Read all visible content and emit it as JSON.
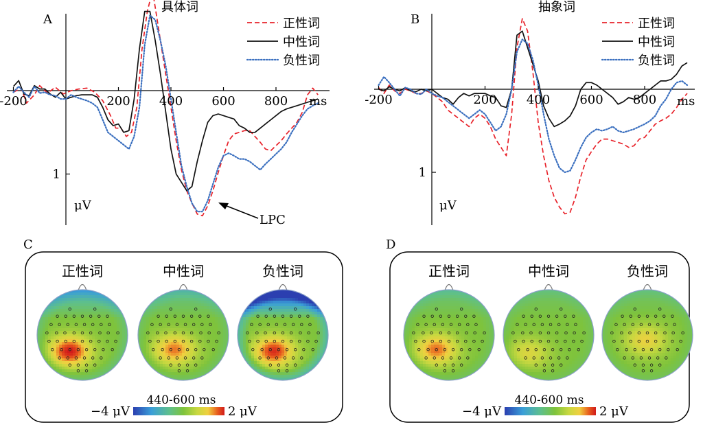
{
  "colors": {
    "positive": "#e8222a",
    "neutral": "#111111",
    "negative": "#3a6fbf",
    "cmap_low": "#2b3fb0",
    "cmap_mid": "#7ec33c",
    "cmap_high": "#d11a1a"
  },
  "panels": {
    "A": {
      "letter": "A"
    },
    "B": {
      "letter": "B"
    },
    "C": {
      "letter": "C"
    },
    "D": {
      "letter": "D"
    }
  },
  "annotations": {
    "lpc": "LPC"
  },
  "chart_data": [
    {
      "panel": "A",
      "type": "line",
      "title": "具体词",
      "x_unit": "ms",
      "y_unit": "μV",
      "xlim": [
        -220,
        960
      ],
      "ylim": [
        -1.05,
        1.6
      ],
      "y_inverted": true,
      "xticks": [
        -200,
        200,
        400,
        600,
        800
      ],
      "xtick_labels": [
        "-200",
        "200",
        "400",
        "600",
        "800"
      ],
      "yticks": [
        1
      ],
      "ytick_labels": [
        "1"
      ],
      "legend_position": "top-right",
      "series": [
        {
          "name": "正性词",
          "style": "dashed",
          "color": "#e8222a",
          "x": [
            -200,
            -170,
            -150,
            -120,
            -100,
            -70,
            -40,
            -10,
            20,
            50,
            80,
            110,
            140,
            170,
            190,
            210,
            230,
            250,
            270,
            290,
            310,
            330,
            345,
            360,
            380,
            400,
            420,
            440,
            460,
            480,
            500,
            520,
            540,
            560,
            580,
            600,
            620,
            640,
            660,
            680,
            700,
            720,
            740,
            760,
            780,
            800,
            820,
            840,
            860,
            880,
            900,
            920,
            940,
            960
          ],
          "y": [
            0.02,
            -0.03,
            0.15,
            0.05,
            -0.06,
            0.03,
            -0.04,
            0.04,
            0,
            -0.02,
            -0.03,
            0.02,
            0.12,
            0.3,
            0.45,
            0.45,
            0.55,
            0.5,
            0.2,
            -0.5,
            -0.95,
            -1.2,
            -0.9,
            -0.6,
            -0.2,
            0.2,
            0.6,
            0.95,
            1.2,
            1.35,
            1.48,
            1.5,
            1.38,
            1.2,
            0.98,
            0.78,
            0.6,
            0.52,
            0.5,
            0.48,
            0.48,
            0.55,
            0.62,
            0.7,
            0.72,
            0.66,
            0.6,
            0.52,
            0.45,
            0.38,
            0.26,
            0.05,
            -0.03,
            0.05
          ]
        },
        {
          "name": "中性词",
          "style": "solid",
          "color": "#111111",
          "x": [
            -200,
            -180,
            -160,
            -140,
            -120,
            -100,
            -80,
            -60,
            -40,
            -20,
            0,
            20,
            40,
            60,
            80,
            100,
            120,
            140,
            160,
            180,
            200,
            220,
            240,
            260,
            280,
            300,
            320,
            340,
            360,
            380,
            400,
            420,
            440,
            460,
            480,
            500,
            520,
            540,
            560,
            580,
            600,
            620,
            640,
            660,
            680,
            700,
            720,
            740,
            760,
            780,
            800,
            820,
            840,
            860,
            880,
            900,
            920,
            940,
            960
          ],
          "y": [
            -0.05,
            -0.12,
            0.04,
            0.06,
            -0.06,
            -0.02,
            -0.02,
            0.04,
            0.08,
            0.02,
            0.1,
            0.08,
            0.06,
            0.05,
            0.05,
            0.05,
            0.08,
            0.2,
            0.35,
            0.42,
            0.4,
            0.5,
            0.48,
            0.1,
            -0.5,
            -0.95,
            -0.95,
            -0.6,
            -0.2,
            0.25,
            0.7,
            1.0,
            1.1,
            1.2,
            1.15,
            0.85,
            0.6,
            0.38,
            0.3,
            0.28,
            0.3,
            0.32,
            0.34,
            0.42,
            0.45,
            0.5,
            0.5,
            0.45,
            0.4,
            0.35,
            0.3,
            0.25,
            0.22,
            0.2,
            0.18,
            0.16,
            0.14,
            0.12,
            0.1
          ]
        },
        {
          "name": "负性词",
          "style": "dotted",
          "color": "#3a6fbf",
          "x": [
            -200,
            -180,
            -160,
            -140,
            -120,
            -100,
            -80,
            -60,
            -40,
            -20,
            0,
            20,
            40,
            60,
            80,
            100,
            120,
            140,
            160,
            180,
            200,
            220,
            240,
            260,
            280,
            300,
            320,
            340,
            360,
            380,
            400,
            420,
            440,
            460,
            480,
            500,
            520,
            540,
            560,
            580,
            600,
            620,
            640,
            660,
            680,
            700,
            720,
            740,
            760,
            780,
            800,
            820,
            840,
            860,
            880,
            900,
            920,
            940,
            960
          ],
          "y": [
            0.02,
            -0.05,
            0.02,
            0.08,
            -0.05,
            0.03,
            0.02,
            0.05,
            0.06,
            0.1,
            0.1,
            0.05,
            0.08,
            0.1,
            0.12,
            0.15,
            0.2,
            0.35,
            0.5,
            0.55,
            0.6,
            0.65,
            0.7,
            0.55,
            0.2,
            -0.55,
            -0.9,
            -0.85,
            -0.6,
            -0.3,
            0.1,
            0.5,
            0.9,
            1.15,
            1.35,
            1.45,
            1.45,
            1.32,
            1.12,
            0.92,
            0.78,
            0.75,
            0.78,
            0.82,
            0.82,
            0.85,
            0.9,
            0.95,
            0.88,
            0.82,
            0.76,
            0.7,
            0.62,
            0.5,
            0.4,
            0.3,
            0.22,
            0.18,
            0.15
          ]
        }
      ]
    },
    {
      "panel": "B",
      "type": "line",
      "title": "抽象词",
      "x_unit": "ms",
      "y_unit": "μV",
      "xlim": [
        -220,
        960
      ],
      "ylim": [
        -1.05,
        1.6
      ],
      "y_inverted": true,
      "xticks": [
        -200,
        200,
        400,
        600,
        800
      ],
      "xtick_labels": [
        "-200",
        "200",
        "400",
        "600",
        "800"
      ],
      "yticks": [
        1
      ],
      "ytick_labels": [
        "1"
      ],
      "legend_position": "top-right",
      "series": [
        {
          "name": "正性词",
          "style": "dashed",
          "color": "#e8222a",
          "x": [
            -200,
            -180,
            -160,
            -140,
            -120,
            -100,
            -80,
            -60,
            -40,
            -20,
            0,
            20,
            40,
            60,
            80,
            100,
            120,
            140,
            160,
            180,
            200,
            220,
            240,
            260,
            280,
            300,
            320,
            340,
            360,
            380,
            400,
            420,
            440,
            460,
            480,
            500,
            520,
            540,
            560,
            580,
            600,
            620,
            640,
            660,
            680,
            700,
            720,
            740,
            760,
            780,
            800,
            820,
            840,
            860,
            880,
            900,
            920,
            940,
            960
          ],
          "y": [
            -0.02,
            0.05,
            -0.05,
            0.02,
            0.05,
            0.0,
            0.02,
            0.05,
            0.05,
            0.02,
            0.05,
            0.1,
            0.15,
            0.25,
            0.3,
            0.35,
            0.4,
            0.45,
            0.35,
            0.3,
            0.35,
            0.45,
            0.6,
            0.7,
            0.8,
            0.3,
            -0.5,
            -0.85,
            -0.7,
            -0.2,
            0.4,
            0.8,
            1.1,
            1.3,
            1.42,
            1.5,
            1.48,
            1.3,
            1.05,
            0.85,
            0.75,
            0.66,
            0.6,
            0.6,
            0.62,
            0.64,
            0.66,
            0.7,
            0.68,
            0.6,
            0.58,
            0.5,
            0.42,
            0.38,
            0.35,
            0.3,
            0.22,
            0.12,
            0.05
          ]
        },
        {
          "name": "中性词",
          "style": "solid",
          "color": "#111111",
          "x": [
            -200,
            -180,
            -160,
            -140,
            -120,
            -100,
            -80,
            -60,
            -40,
            -20,
            0,
            20,
            40,
            60,
            80,
            100,
            120,
            140,
            160,
            180,
            200,
            220,
            240,
            260,
            280,
            300,
            320,
            340,
            360,
            380,
            400,
            420,
            440,
            460,
            480,
            500,
            520,
            540,
            560,
            580,
            600,
            620,
            640,
            660,
            680,
            700,
            720,
            740,
            760,
            780,
            800,
            820,
            840,
            860,
            880,
            900,
            920,
            940,
            960
          ],
          "y": [
            0.0,
            0.02,
            -0.03,
            0.0,
            0.02,
            -0.02,
            0.02,
            0.03,
            0.0,
            0.02,
            0.0,
            0.05,
            0.1,
            0.12,
            0.18,
            0.1,
            0.05,
            0.08,
            0.05,
            0.05,
            0.05,
            0.08,
            0.1,
            0.2,
            0.22,
            0.0,
            -0.65,
            -0.7,
            -0.5,
            -0.3,
            -0.1,
            0.2,
            0.35,
            0.45,
            0.42,
            0.38,
            0.32,
            0.2,
            0.0,
            -0.08,
            -0.08,
            -0.05,
            0.0,
            0.05,
            0.1,
            0.18,
            0.15,
            0.1,
            0.12,
            0.1,
            0.05,
            0.0,
            -0.05,
            -0.1,
            -0.1,
            -0.12,
            -0.18,
            -0.28,
            -0.32
          ]
        },
        {
          "name": "负性词",
          "style": "dotted",
          "color": "#3a6fbf",
          "x": [
            -200,
            -180,
            -160,
            -140,
            -120,
            -100,
            -80,
            -60,
            -40,
            -20,
            0,
            20,
            40,
            60,
            80,
            100,
            120,
            140,
            160,
            180,
            200,
            220,
            240,
            260,
            280,
            300,
            320,
            340,
            360,
            380,
            400,
            420,
            440,
            460,
            480,
            500,
            520,
            540,
            560,
            580,
            600,
            620,
            640,
            660,
            680,
            700,
            720,
            740,
            760,
            780,
            800,
            820,
            840,
            860,
            880,
            900,
            920,
            940,
            960
          ],
          "y": [
            -0.05,
            -0.15,
            -0.08,
            0.0,
            0.08,
            -0.02,
            0.0,
            0.05,
            0.06,
            0.0,
            0.05,
            0.08,
            0.1,
            0.15,
            0.2,
            0.25,
            0.3,
            0.35,
            0.3,
            0.25,
            0.3,
            0.4,
            0.5,
            0.45,
            0.3,
            0.0,
            -0.45,
            -0.6,
            -0.55,
            -0.35,
            -0.05,
            0.3,
            0.6,
            0.8,
            0.95,
            1.0,
            0.98,
            0.85,
            0.7,
            0.58,
            0.52,
            0.48,
            0.5,
            0.48,
            0.45,
            0.5,
            0.52,
            0.5,
            0.48,
            0.45,
            0.42,
            0.38,
            0.32,
            0.2,
            0.12,
            0.0,
            -0.08,
            -0.1,
            -0.05
          ]
        }
      ]
    },
    {
      "panel": "C",
      "type": "heatmap",
      "subtype": "scalp-topography",
      "time_window": "440-600 ms",
      "colorbar": {
        "min_label": "−4 μV",
        "max_label": "2 μV",
        "min": -4,
        "max": 2
      },
      "maps": [
        {
          "label": "正性词",
          "hotspot": [
            0.36,
            0.68
          ],
          "hot_intensity": 1.0,
          "frontal_cold": 0.35
        },
        {
          "label": "中性词",
          "hotspot": [
            0.4,
            0.66
          ],
          "hot_intensity": 0.78,
          "frontal_cold": 0.2
        },
        {
          "label": "负性词",
          "hotspot": [
            0.4,
            0.68
          ],
          "hot_intensity": 0.95,
          "frontal_cold": 0.85
        }
      ]
    },
    {
      "panel": "D",
      "type": "heatmap",
      "subtype": "scalp-topography",
      "time_window": "440-600 ms",
      "colorbar": {
        "min_label": "−4 μV",
        "max_label": "2 μV",
        "min": -4,
        "max": 2
      },
      "maps": [
        {
          "label": "正性词",
          "hotspot": [
            0.36,
            0.66
          ],
          "hot_intensity": 0.8,
          "frontal_cold": 0.15
        },
        {
          "label": "中性词",
          "hotspot": [
            0.28,
            0.7
          ],
          "hot_intensity": 0.45,
          "frontal_cold": 0.1
        },
        {
          "label": "负性词",
          "hotspot": [
            0.48,
            0.56
          ],
          "hot_intensity": 0.55,
          "frontal_cold": 0.1
        }
      ]
    }
  ]
}
